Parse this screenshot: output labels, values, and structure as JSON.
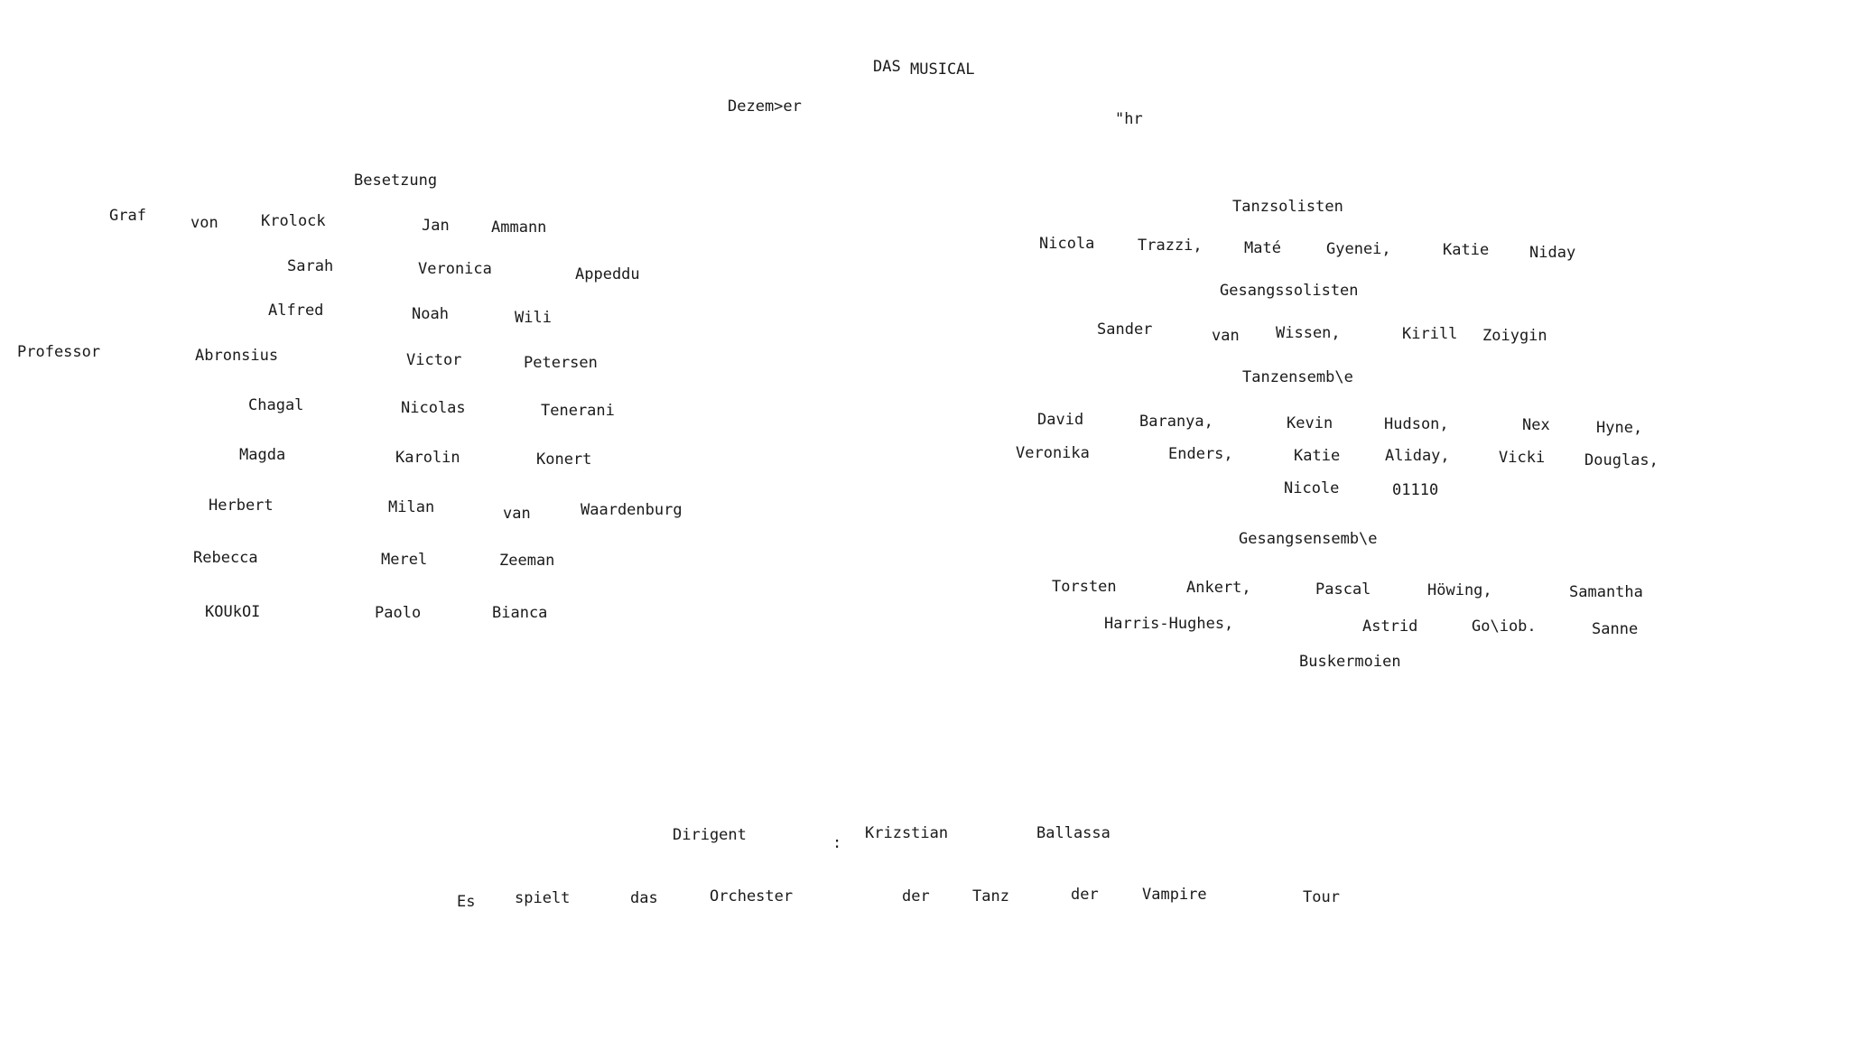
{
  "header": {
    "title": [
      "DAS",
      "MUSICAL"
    ],
    "date": [
      "Dezem>er",
      "\"hr"
    ]
  },
  "cast": {
    "heading": "Besetzung",
    "rows": [
      {
        "role": [
          "Graf",
          "von",
          "Krolock"
        ],
        "actor": [
          "Jan",
          "Ammann"
        ]
      },
      {
        "role": [
          "Sarah"
        ],
        "actor": [
          "Veronica",
          "Appeddu"
        ]
      },
      {
        "role": [
          "Alfred"
        ],
        "actor": [
          "Noah",
          "Wili"
        ]
      },
      {
        "role": [
          "Professor",
          "Abronsius"
        ],
        "actor": [
          "Victor",
          "Petersen"
        ]
      },
      {
        "role": [
          "Chagal"
        ],
        "actor": [
          "Nicolas",
          "Tenerani"
        ]
      },
      {
        "role": [
          "Magda"
        ],
        "actor": [
          "Karolin",
          "Konert"
        ]
      },
      {
        "role": [
          "Herbert"
        ],
        "actor": [
          "Milan",
          "van",
          "Waardenburg"
        ]
      },
      {
        "role": [
          "Rebecca"
        ],
        "actor": [
          "Merel",
          "Zeeman"
        ]
      },
      {
        "role": [
          "KOUkOI"
        ],
        "actor": [
          "Paolo",
          "Bianca"
        ]
      }
    ]
  },
  "ensemble": {
    "dance_soloists": {
      "heading": "Tanzsolisten",
      "names": [
        "Nicola",
        "Trazzi,",
        "Maté",
        "Gyenei,",
        "Katie",
        "Niday"
      ]
    },
    "vocal_soloists": {
      "heading": "Gesangssolisten",
      "names": [
        "Sander",
        "van",
        "Wissen,",
        "Kirill",
        "Zoiygin"
      ]
    },
    "dance_ensemble": {
      "heading": "Tanzensemb\\e",
      "lines": [
        [
          "David",
          "Baranya,",
          "Kevin",
          "Hudson,",
          "Nex",
          "Hyne,"
        ],
        [
          "Veronika",
          "Enders,",
          "Katie",
          "Aliday,",
          "Vicki",
          "Douglas,"
        ],
        [
          "Nicole",
          "01110"
        ]
      ]
    },
    "vocal_ensemble": {
      "heading": "Gesangsensemb\\e",
      "lines": [
        [
          "Torsten",
          "Ankert,",
          "Pascal",
          "Höwing,",
          "Samantha"
        ],
        [
          "Harris-Hughes,",
          "Astrid",
          "Go\\iob.",
          "Sanne"
        ],
        [
          "Buskermoien"
        ]
      ]
    }
  },
  "footer": {
    "conductor": [
      "Dirigent",
      ":",
      "Krizstian",
      "Ballassa"
    ],
    "orchestra": [
      "Es",
      "spielt",
      "das",
      "Orchester",
      "der",
      "Tanz",
      "der",
      "Vampire",
      "Tour"
    ]
  }
}
